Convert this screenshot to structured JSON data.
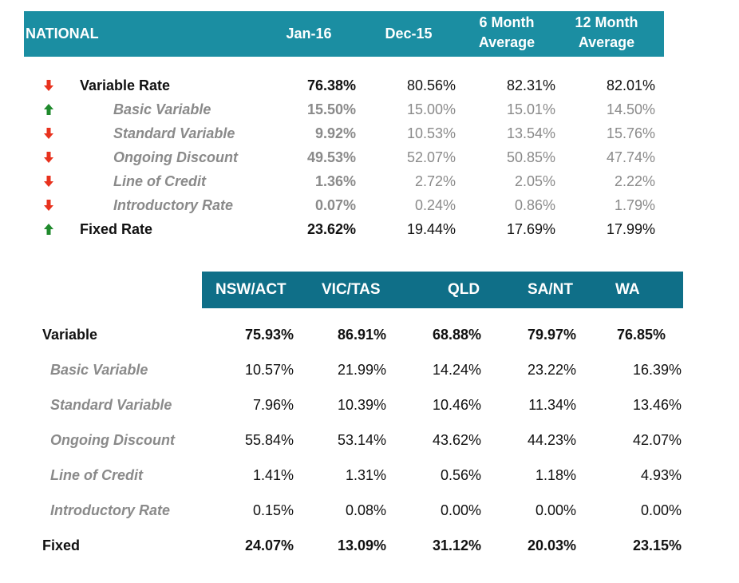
{
  "colors": {
    "national_header_bg": "#1b8ea2",
    "state_header_bg": "#0f6f88",
    "down_arrow": "#e8321e",
    "up_arrow": "#1f8a2c",
    "sub_text": "#8a8a8a"
  },
  "national": {
    "headers": {
      "label": "NATIONAL",
      "jan": "Jan-16",
      "dec": "Dec-15",
      "avg6_line1": "6 Month",
      "avg6_line2": "Average",
      "avg12_line1": "12 Month",
      "avg12_line2": "Average"
    },
    "rows": [
      {
        "label": "Variable Rate",
        "trend": "down",
        "jan": "76.38%",
        "dec": "80.56%",
        "avg6": "82.31%",
        "avg12": "82.01%"
      },
      {
        "label": "Basic Variable",
        "trend": "up",
        "jan": "15.50%",
        "dec": "15.00%",
        "avg6": "15.01%",
        "avg12": "14.50%"
      },
      {
        "label": "Standard Variable",
        "trend": "down",
        "jan": "9.92%",
        "dec": "10.53%",
        "avg6": "13.54%",
        "avg12": "15.76%"
      },
      {
        "label": "Ongoing Discount",
        "trend": "down",
        "jan": "49.53%",
        "dec": "52.07%",
        "avg6": "50.85%",
        "avg12": "47.74%"
      },
      {
        "label": "Line of Credit",
        "trend": "down",
        "jan": "1.36%",
        "dec": "2.72%",
        "avg6": "2.05%",
        "avg12": "2.22%"
      },
      {
        "label": "Introductory Rate",
        "trend": "down",
        "jan": "0.07%",
        "dec": "0.24%",
        "avg6": "0.86%",
        "avg12": "1.79%"
      },
      {
        "label": "Fixed Rate",
        "trend": "up",
        "jan": "23.62%",
        "dec": "19.44%",
        "avg6": "17.69%",
        "avg12": "17.99%"
      }
    ]
  },
  "states": {
    "headers": [
      "NSW/ACT",
      "VIC/TAS",
      "QLD",
      "SA/NT",
      "WA"
    ],
    "rows": [
      {
        "label": "Variable",
        "values": [
          "75.93%",
          "86.91%",
          "68.88%",
          "79.97%",
          "76.85%"
        ]
      },
      {
        "label": "Basic Variable",
        "values": [
          "10.57%",
          "21.99%",
          "14.24%",
          "23.22%",
          "16.39%"
        ]
      },
      {
        "label": "Standard Variable",
        "values": [
          "7.96%",
          "10.39%",
          "10.46%",
          "11.34%",
          "13.46%"
        ]
      },
      {
        "label": "Ongoing Discount",
        "values": [
          "55.84%",
          "53.14%",
          "43.62%",
          "44.23%",
          "42.07%"
        ]
      },
      {
        "label": "Line of Credit",
        "values": [
          "1.41%",
          "1.31%",
          "0.56%",
          "1.18%",
          "4.93%"
        ]
      },
      {
        "label": "Introductory Rate",
        "values": [
          "0.15%",
          "0.08%",
          "0.00%",
          "0.00%",
          "0.00%"
        ]
      },
      {
        "label": "Fixed",
        "values": [
          "24.07%",
          "13.09%",
          "31.12%",
          "20.03%",
          "23.15%"
        ]
      }
    ]
  }
}
